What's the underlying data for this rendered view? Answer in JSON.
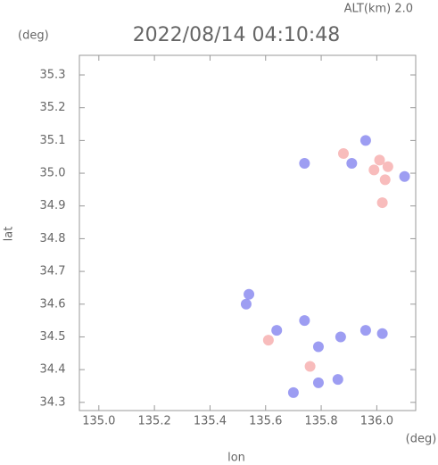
{
  "chart_data": {
    "type": "scatter",
    "title": "2022/08/14 04:10:48",
    "subtitle": "ALT(km) 2.0",
    "y_unit": "(deg)",
    "x_unit": "(deg)",
    "x_label": "lon",
    "y_label": "lat",
    "xlim": [
      134.93,
      136.14
    ],
    "ylim": [
      34.275,
      35.36
    ],
    "xticks": [
      {
        "value": 135,
        "label": "135.0"
      },
      135.2,
      135.4,
      135.6,
      135.8,
      {
        "value": 136,
        "label": "136.0"
      }
    ],
    "yticks": [
      34.3,
      34.4,
      34.5,
      34.6,
      34.7,
      34.8,
      34.9,
      {
        "value": 35,
        "label": "35.0"
      },
      35.1,
      35.2,
      35.3
    ],
    "series": [
      {
        "color": "#f7b0b0",
        "x": [
          136.01,
          136.04,
          135.99,
          136.03,
          135.88,
          136.02,
          135.61,
          135.76
        ],
        "y": [
          35.04,
          35.02,
          35.01,
          34.98,
          35.06,
          34.91,
          34.49,
          34.41
        ]
      },
      {
        "color": "#8c8cf0",
        "x": [
          135.96,
          135.91,
          135.74,
          135.53,
          135.54,
          135.74,
          135.79,
          135.87,
          135.96,
          136.02,
          135.79,
          135.7,
          135.86,
          136.1,
          135.64
        ],
        "y": [
          35.1,
          35.03,
          35.03,
          34.6,
          34.63,
          34.55,
          34.47,
          34.5,
          34.52,
          34.51,
          34.36,
          34.33,
          34.37,
          34.99,
          34.52
        ]
      }
    ]
  }
}
